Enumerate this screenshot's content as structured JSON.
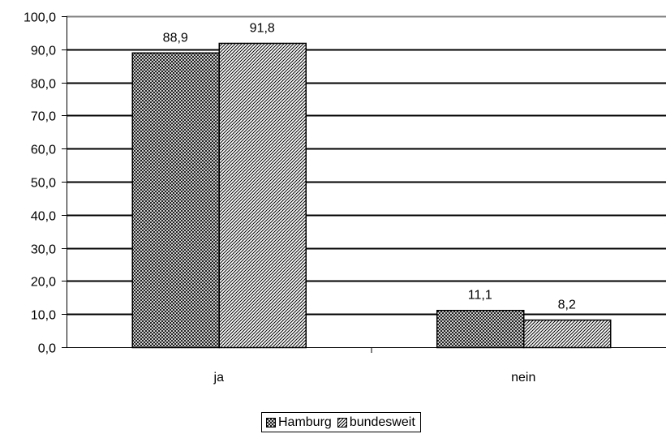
{
  "chart_data": {
    "type": "bar",
    "categories": [
      "ja",
      "nein"
    ],
    "series": [
      {
        "name": "Hamburg",
        "values": [
          88.9,
          11.1
        ],
        "labels": [
          "88,9",
          "11,1"
        ],
        "pattern": "crosshatch"
      },
      {
        "name": "bundesweit",
        "values": [
          91.8,
          8.2
        ],
        "labels": [
          "91,8",
          "8,2"
        ],
        "pattern": "diagonal"
      }
    ],
    "yticks": [
      "0,0",
      "10,0",
      "20,0",
      "30,0",
      "40,0",
      "50,0",
      "60,0",
      "70,0",
      "80,0",
      "90,0",
      "100,0"
    ],
    "ylim": [
      0,
      100
    ],
    "grid": true,
    "legend_position": "bottom",
    "title": "",
    "xlabel": "",
    "ylabel": ""
  }
}
